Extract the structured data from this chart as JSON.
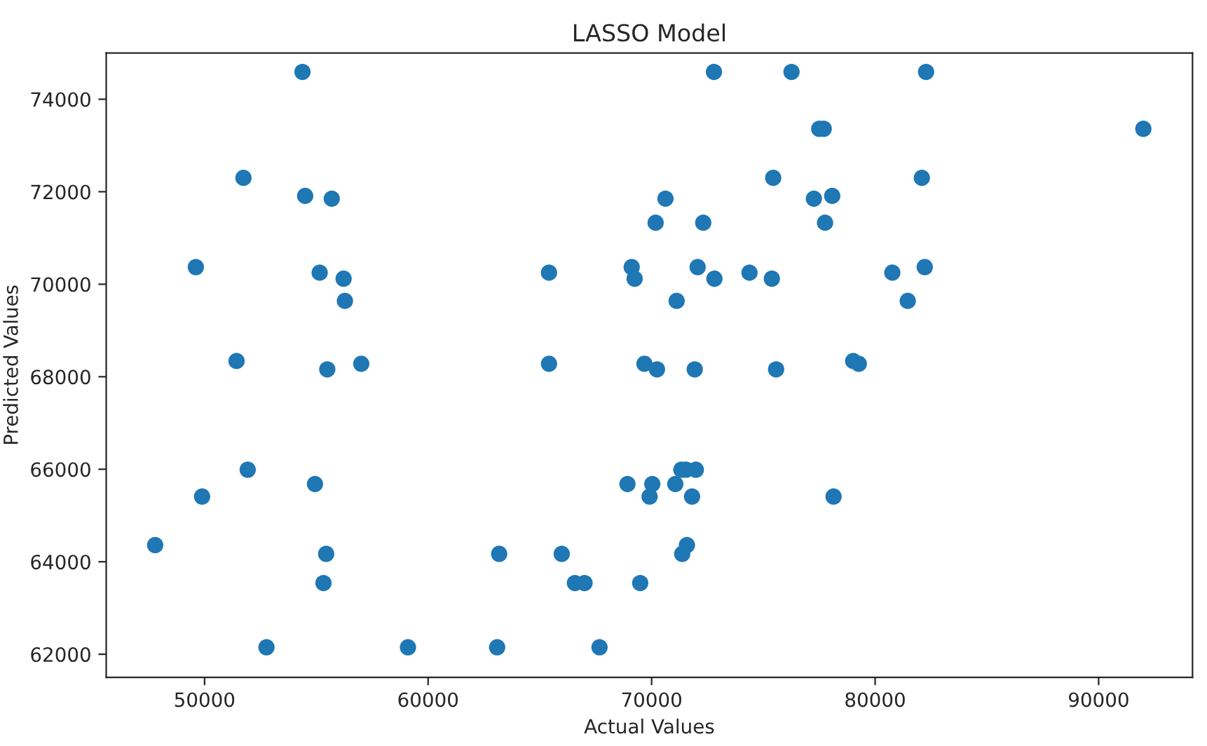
{
  "chart_data": {
    "type": "scatter",
    "title": "LASSO Model",
    "xlabel": "Actual Values",
    "ylabel": "Predicted Values",
    "xlim": [
      45600,
      94200
    ],
    "ylim": [
      61500,
      75000
    ],
    "xticks": [
      50000,
      60000,
      70000,
      80000,
      90000
    ],
    "yticks": [
      62000,
      64000,
      66000,
      68000,
      70000,
      72000,
      74000
    ],
    "grid": false,
    "marker": "circle",
    "series": [
      {
        "color": "#1f77b4",
        "x": [
          54380,
          72790,
          76260,
          82280,
          77500,
          77700,
          92000,
          75440,
          82090,
          51740,
          70620,
          77260,
          78080,
          54500,
          55690,
          70180,
          72310,
          77760,
          69110,
          69240,
          72060,
          72810,
          74380,
          75380,
          80770,
          82220,
          49610,
          55150,
          56220,
          65410,
          71120,
          81460,
          56280,
          69680,
          70240,
          71930,
          75570,
          79020,
          79270,
          51430,
          55490,
          57010,
          65410,
          51930,
          49890,
          54940,
          47790,
          55440,
          55320,
          52770,
          59100,
          63090,
          67670,
          63180,
          65980,
          66570,
          67000,
          68920,
          69490,
          70030,
          71060,
          71330,
          71540,
          71980,
          69910,
          71810,
          78140,
          71580,
          71370
        ],
        "values": [
          74590,
          74590,
          74590,
          74590,
          73360,
          73360,
          73360,
          72300,
          72300,
          72300,
          71850,
          71850,
          71910,
          71910,
          71850,
          71330,
          71330,
          71330,
          70370,
          70120,
          70370,
          70120,
          70250,
          70120,
          70250,
          70370,
          70370,
          70250,
          70120,
          70250,
          69640,
          69640,
          69640,
          68280,
          68160,
          68160,
          68160,
          68340,
          68280,
          68340,
          68160,
          68280,
          68280,
          65990,
          65410,
          65680,
          64360,
          64170,
          63540,
          62150,
          62150,
          62150,
          62150,
          64170,
          64170,
          63540,
          63540,
          65680,
          63540,
          65680,
          65680,
          65990,
          65990,
          65990,
          65410,
          65410,
          65410,
          64360,
          64170
        ]
      }
    ]
  }
}
